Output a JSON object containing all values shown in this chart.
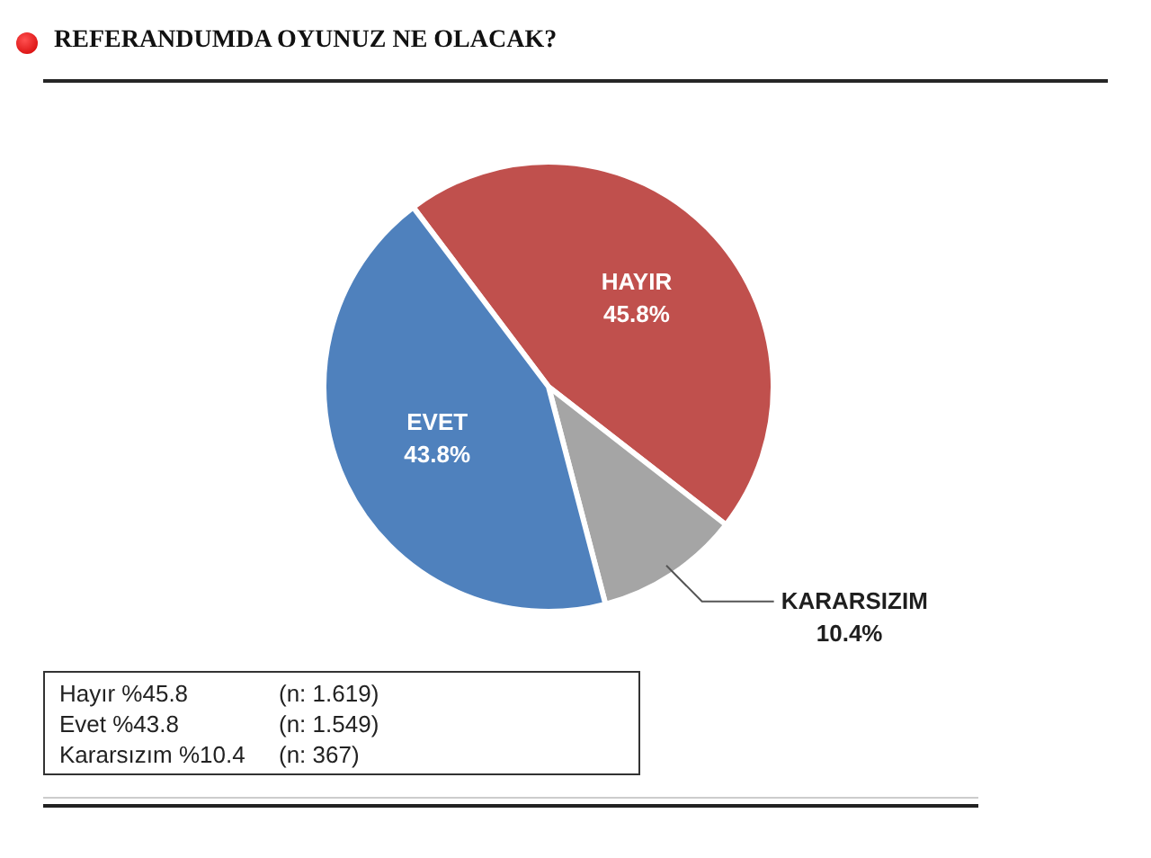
{
  "chart_data": {
    "type": "pie",
    "title": "REFERANDUMDA OYUNUZ NE OLACAK?",
    "categories": [
      "HAYIR",
      "KARARSIZIM",
      "EVET"
    ],
    "values": [
      45.8,
      10.4,
      43.8
    ],
    "value_labels": [
      "45.8%",
      "10.4%",
      "43.8%"
    ],
    "colors": [
      "#c0504d",
      "#a5a5a5",
      "#4f81bd"
    ],
    "annotations": [
      "Hayır %45.8",
      "(n: 1.619)",
      "Evet %43.8",
      "(n: 1.549)",
      "Kararsızım %10.4",
      "(n: 367)"
    ]
  }
}
